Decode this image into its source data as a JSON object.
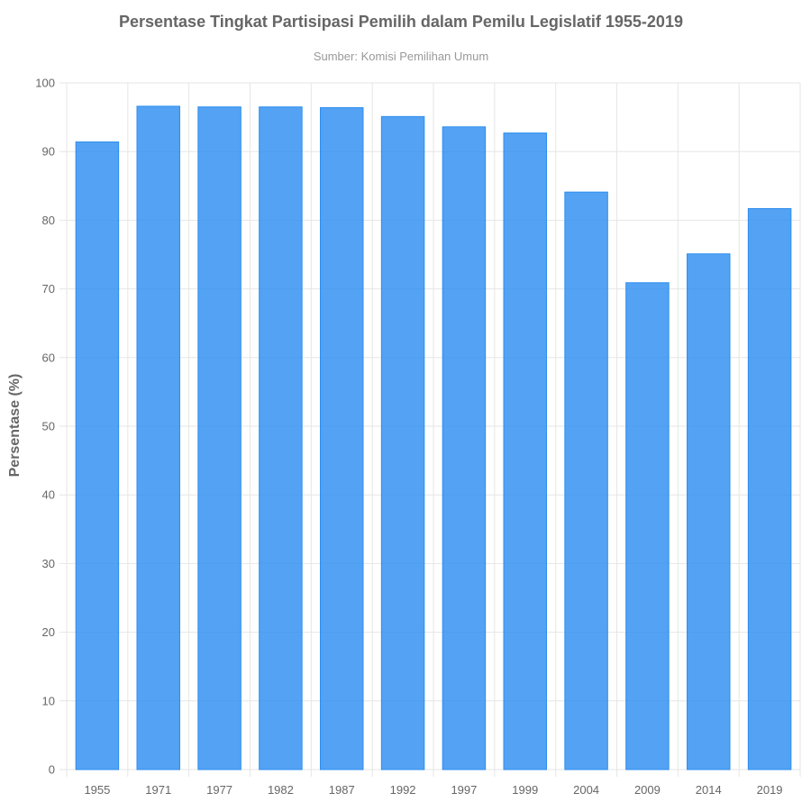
{
  "chart_data": {
    "type": "bar",
    "title": "Persentase Tingkat Partisipasi Pemilih dalam Pemilu Legislatif 1955-2019",
    "subtitle": "Sumber: Komisi Pemilihan Umum",
    "xlabel": "",
    "ylabel": "Persentase (%)",
    "categories": [
      "1955",
      "1971",
      "1977",
      "1982",
      "1987",
      "1992",
      "1997",
      "1999",
      "2004",
      "2009",
      "2014",
      "2019"
    ],
    "values": [
      91.4,
      96.6,
      96.5,
      96.5,
      96.4,
      95.1,
      93.6,
      92.7,
      84.1,
      70.9,
      75.1,
      81.7
    ],
    "ylim": [
      0,
      100
    ],
    "yticks": [
      0,
      10,
      20,
      30,
      40,
      50,
      60,
      70,
      80,
      90,
      100
    ],
    "grid": true,
    "legend": "none",
    "colors": {
      "bar": "#2d8ef0",
      "grid": "#e6e6e6",
      "text": "#666666",
      "subtitle": "#999999"
    }
  }
}
